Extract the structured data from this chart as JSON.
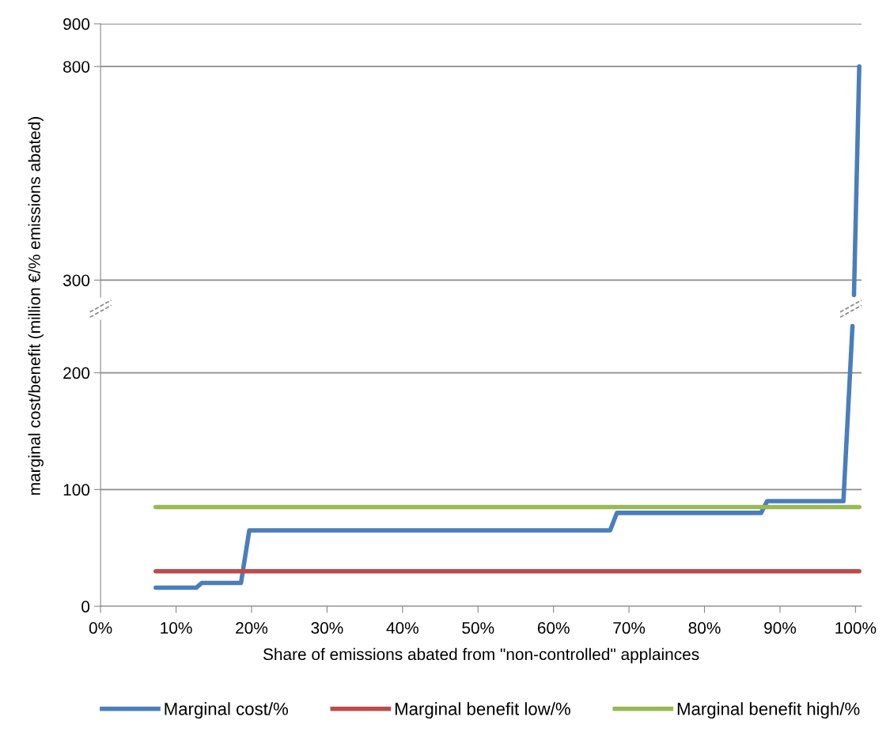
{
  "chart_data": [
    {
      "type": "line",
      "xlim": [
        0,
        100.8
      ],
      "ylim": [
        260,
        900
      ],
      "yticks": [
        300,
        800,
        900
      ],
      "tick_labels": "y",
      "grid": "y",
      "legend": false,
      "series": [
        {
          "color": "#4a7ebb",
          "x": [
            99.8,
            100.5
          ],
          "values": [
            265,
            800
          ]
        }
      ]
    },
    {
      "type": "line",
      "xlabel": "Share of emissions abated from \"non-controlled\" applainces",
      "ylabel": "marginal cost/benefit (million €/% emissions abated)",
      "xlim": [
        0,
        100.8
      ],
      "ylim": [
        0,
        245
      ],
      "xticks": [
        {
          "value": 0,
          "label": "0%"
        },
        {
          "value": 10,
          "label": "10%"
        },
        {
          "value": 20,
          "label": "20%"
        },
        {
          "value": 30,
          "label": "30%"
        },
        {
          "value": 40,
          "label": "40%"
        },
        {
          "value": 50,
          "label": "50%"
        },
        {
          "value": 60,
          "label": "60%"
        },
        {
          "value": 70,
          "label": "70%"
        },
        {
          "value": 80,
          "label": "80%"
        },
        {
          "value": 90,
          "label": "90%"
        },
        {
          "value": 100,
          "label": "100%"
        }
      ],
      "yticks": [
        0,
        100,
        200
      ],
      "grid": "y",
      "legend": "bottom",
      "series": [
        {
          "name": "Marginal cost/%",
          "color": "#4a7ebb",
          "x": [
            7.3,
            12.7,
            13.4,
            18.6,
            19.7,
            67.5,
            68.4,
            87.5,
            88.3,
            98.4,
            99.6
          ],
          "values": [
            16,
            16,
            20,
            20,
            65,
            65,
            80,
            80,
            90,
            90,
            240
          ]
        },
        {
          "name": "Marginal benefit low/%",
          "color": "#be4b48",
          "x": [
            7.3,
            100.5
          ],
          "values": [
            30,
            30
          ]
        },
        {
          "name": "Marginal benefit high/%",
          "color": "#98b954",
          "x": [
            7.3,
            100.5
          ],
          "values": [
            85,
            85
          ]
        }
      ]
    }
  ]
}
